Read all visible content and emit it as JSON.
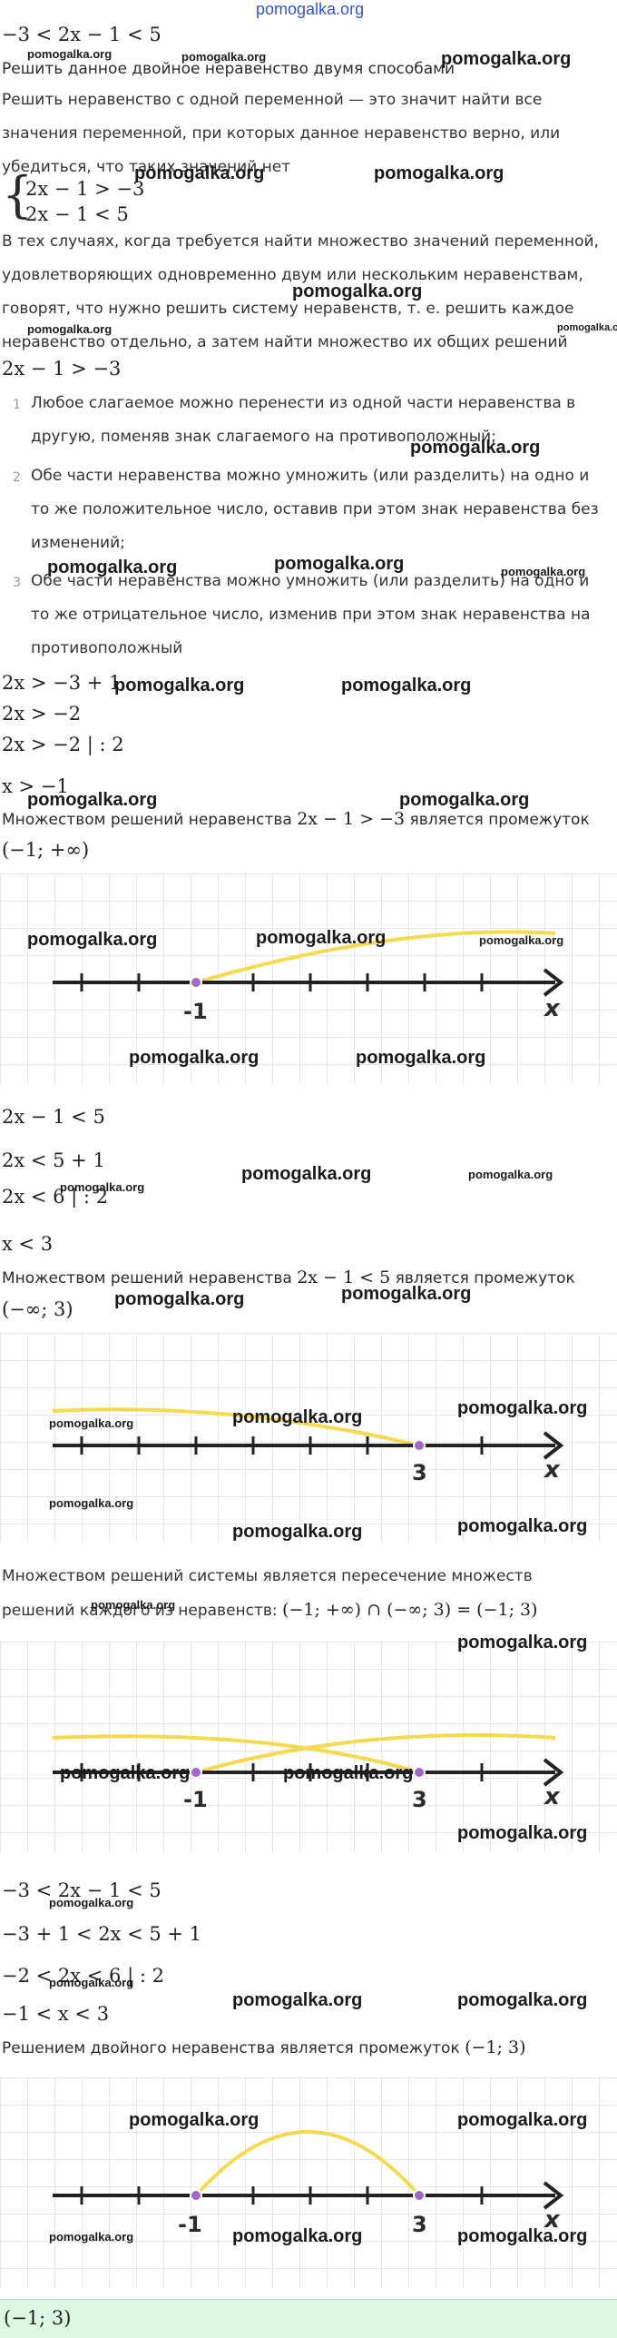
{
  "site": "pomogalka.org",
  "header_link": "pomogalka.org",
  "problem": "−3 < 2x − 1 < 5",
  "intro": "Решить данное двойное неравенство двумя способами",
  "definition": "Решить неравенство с одной переменной — это значит найти все значения переменной, при которых данное неравенство верно, или убедиться, что таких значений нет",
  "system": [
    "2x − 1 > −3",
    "2x − 1 < 5"
  ],
  "system_text": "В тех случаях, когда требуется найти множество значений переменной, удовлетворяющих одновременно двум или нескольким неравенствам, говорят, что нужно решить систему неравенств, т. е. решить каждое неравенство отдельно, а затем найти множество их общих решений",
  "ineq1": "2x − 1 > −3",
  "rules": [
    {
      "num": "1",
      "text": "Любое слагаемое можно перенести из одной части неравенства в другую, поменяв знак слагаемого на противоположный;"
    },
    {
      "num": "2",
      "text": "Обе части неравенства можно умножить (или разделить) на одно и то же положительное число, оставив при этом знак неравенства без изменений;"
    },
    {
      "num": "3",
      "text": "Обе части неравенства можно умножить (или разделить) на одно и то же отрицательное число, изменив при этом знак неравенства на противоположный"
    }
  ],
  "steps1": [
    "2x > −3 + 1",
    "2x > −2",
    "2x > −2 | : 2",
    "x > −1"
  ],
  "result1_text": "Множеством решений неравенства",
  "result1_expr": "2x − 1 > −3",
  "result1_tail": "является промежуток",
  "interval1": "(−1; +∞)",
  "ineq2": "2x − 1 < 5",
  "steps2": [
    "2x < 5 + 1",
    "2x < 6 | : 2",
    "x < 3"
  ],
  "result2_text": "Множеством решений неравенства",
  "result2_expr": "2x − 1 < 5",
  "result2_tail": "является промежуток",
  "interval2": "(−∞; 3)",
  "intersection_text": "Множеством решений системы является пересечение множеств решений каждого из неравенств:",
  "intersection_expr": "(−1; +∞) ∩ (−∞; 3) = (−1; 3)",
  "steps3": [
    "−3 < 2x − 1 < 5",
    "−3 + 1 < 2x < 5 + 1",
    "−2 < 2x < 6 | : 2",
    "−1 < x < 3"
  ],
  "result3_text": "Решением двойного неравенства является промежуток",
  "result3_interval": "(−1; 3)",
  "answer": "(−1; 3)",
  "axis": {
    "var": "x",
    "label_a": "-1",
    "label_b": "3"
  },
  "colors": {
    "arc": "#f5d94e",
    "axis": "#222222",
    "point": "#a066c8",
    "answer_bg": "#dcf7e3",
    "link": "#3355cc"
  }
}
